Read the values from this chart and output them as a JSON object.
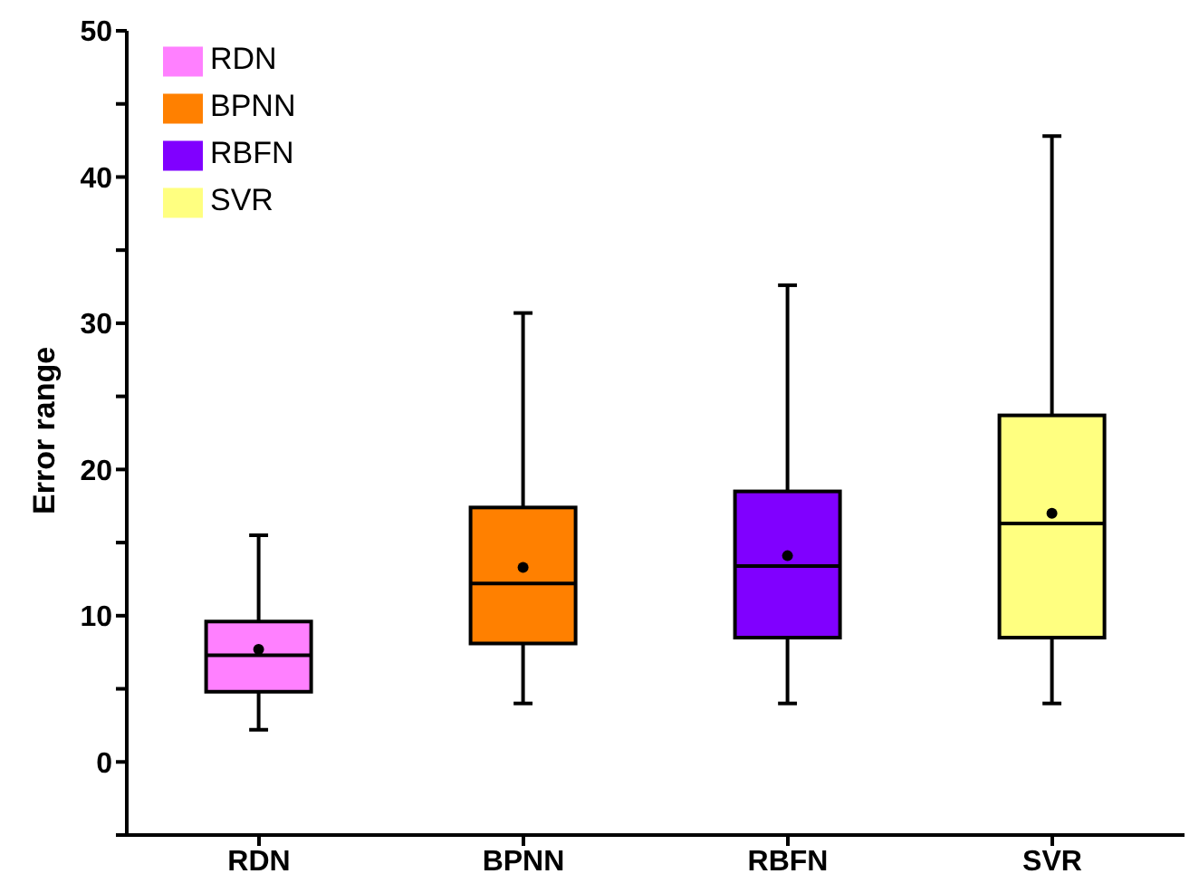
{
  "chart_data": {
    "type": "box",
    "ylabel": "Error range",
    "categories": [
      "RDN",
      "BPNN",
      "RBFN",
      "SVR"
    ],
    "series": [
      {
        "name": "RDN",
        "color": "#ff80ff",
        "boxes": [
          {
            "low": 2.2,
            "q1": 4.8,
            "median": 7.3,
            "q3": 9.6,
            "high": 15.5,
            "mean": 7.7
          },
          null,
          null,
          null
        ]
      },
      {
        "name": "BPNN",
        "color": "#ff8000",
        "boxes": [
          null,
          {
            "low": 4.0,
            "q1": 8.1,
            "median": 12.2,
            "q3": 17.4,
            "high": 30.7,
            "mean": 13.3
          },
          null,
          null
        ]
      },
      {
        "name": "RBFN",
        "color": "#8000ff",
        "boxes": [
          null,
          null,
          {
            "low": 4.0,
            "q1": 8.5,
            "median": 13.4,
            "q3": 18.5,
            "high": 32.6,
            "mean": 14.1
          },
          null
        ]
      },
      {
        "name": "SVR",
        "color": "#ffff80",
        "boxes": [
          null,
          null,
          null,
          {
            "low": 4.0,
            "q1": 8.5,
            "median": 16.3,
            "q3": 23.7,
            "high": 42.8,
            "mean": 17.0
          }
        ]
      }
    ],
    "ylim": [
      -5,
      50
    ],
    "yticks": [
      {
        "value": -5,
        "label": null
      },
      0,
      {
        "value": 5,
        "label": null
      },
      10,
      {
        "value": 15,
        "label": null
      },
      20,
      {
        "value": 25,
        "label": null
      },
      30,
      {
        "value": 35,
        "label": null
      },
      40,
      {
        "value": 45,
        "label": null
      },
      50
    ],
    "legend": "top left"
  }
}
